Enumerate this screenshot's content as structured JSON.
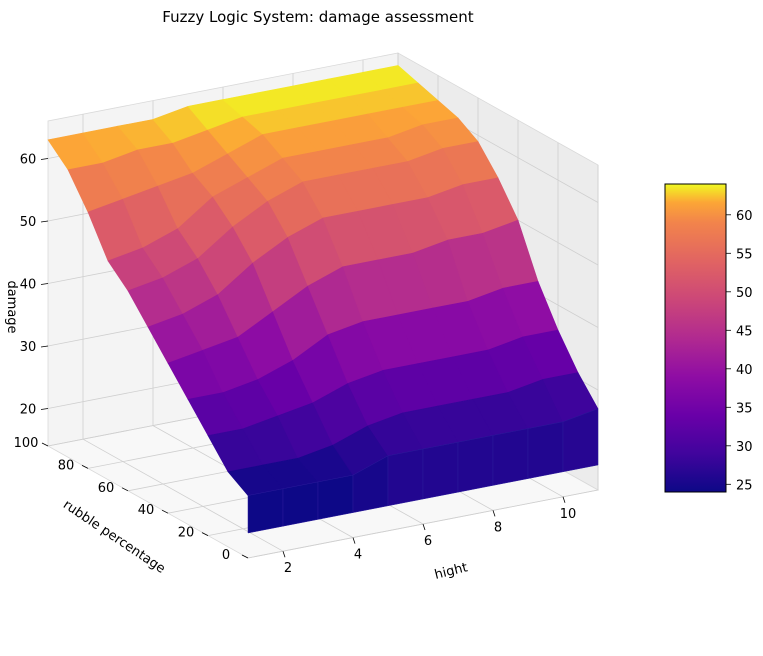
{
  "chart_data": {
    "type": "surface3d",
    "title": "Fuzzy Logic System: damage assessment",
    "xlabel": "hight",
    "ylabel": "rubble percentage",
    "zlabel": "damage",
    "xlim": [
      1,
      11
    ],
    "ylim": [
      0,
      100
    ],
    "zlim": [
      14,
      66
    ],
    "x_ticks": [
      2,
      4,
      6,
      8,
      10
    ],
    "y_ticks": [
      0,
      20,
      40,
      60,
      80,
      100
    ],
    "z_ticks": [
      20,
      30,
      40,
      50,
      60
    ],
    "colormap": "plasma",
    "colorbar": {
      "min": 24,
      "max": 64,
      "ticks": [
        25,
        30,
        35,
        40,
        45,
        50,
        55,
        60
      ]
    },
    "x": [
      1,
      2,
      3,
      4,
      5,
      6,
      7,
      8,
      9,
      10,
      11
    ],
    "y": [
      0,
      10,
      20,
      30,
      40,
      50,
      60,
      70,
      80,
      90,
      100
    ],
    "z": [
      [
        24,
        24,
        24,
        24,
        26,
        26,
        26,
        26,
        26,
        26,
        27
      ],
      [
        26,
        26,
        26,
        27,
        29,
        30,
        30,
        30,
        30,
        31,
        31
      ],
      [
        30,
        30,
        31,
        32,
        34,
        35,
        35,
        35,
        35,
        36,
        36
      ],
      [
        34,
        34,
        35,
        37,
        40,
        41,
        41,
        41,
        41,
        42,
        42
      ],
      [
        38,
        39,
        40,
        43,
        46,
        48,
        48,
        48,
        49,
        49,
        50
      ],
      [
        42,
        43,
        45,
        49,
        52,
        54,
        54,
        54,
        54,
        55,
        55
      ],
      [
        46,
        47,
        49,
        53,
        56,
        58,
        58,
        58,
        58,
        59,
        59
      ],
      [
        49,
        50,
        52,
        56,
        58,
        60,
        60,
        60,
        60,
        61,
        61
      ],
      [
        55,
        56,
        57,
        58,
        60,
        62,
        62,
        62,
        62,
        62,
        62
      ],
      [
        60,
        60,
        61,
        61,
        62,
        63,
        63,
        63,
        63,
        63,
        63
      ],
      [
        63,
        63,
        63,
        63,
        64,
        64,
        64,
        64,
        64,
        64,
        64
      ]
    ]
  }
}
